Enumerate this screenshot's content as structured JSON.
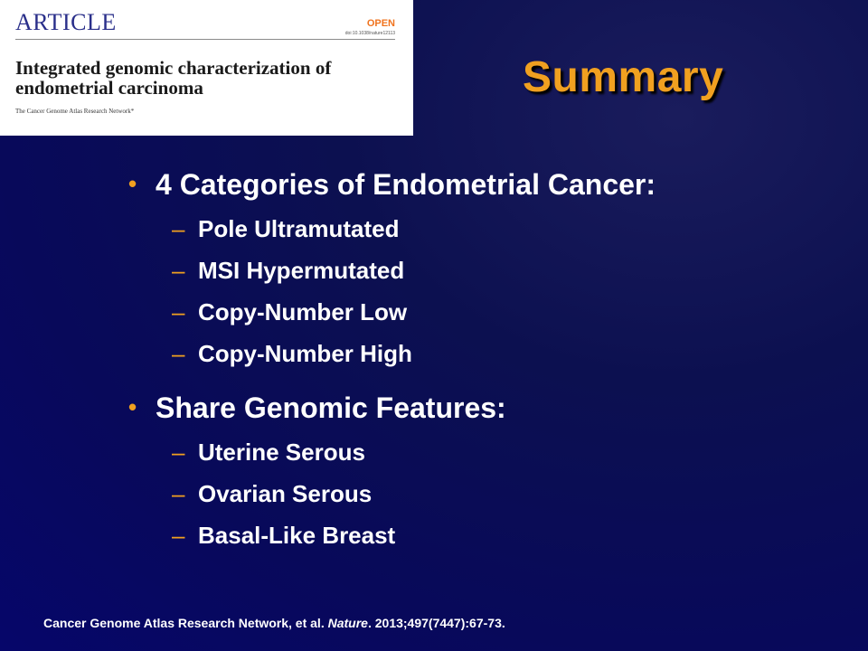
{
  "article": {
    "header": "ARTICLE",
    "open_label": "OPEN",
    "doi": "doi:10.1038/nature12113",
    "title": "Integrated genomic characterization of endometrial carcinoma",
    "authors": "The Cancer Genome Atlas Research Network*"
  },
  "slide": {
    "title": "Summary",
    "bullets": [
      {
        "label": "4 Categories of Endometrial Cancer:",
        "subitems": [
          "Pole Ultramutated",
          "MSI Hypermutated",
          "Copy-Number Low",
          "Copy-Number High"
        ]
      },
      {
        "label": "Share Genomic Features:",
        "subitems": [
          "Uterine Serous",
          "Ovarian Serous",
          "Basal-Like Breast"
        ]
      }
    ],
    "bullet_marker": "•",
    "sub_marker": "–"
  },
  "citation": {
    "prefix": "Cancer Genome Atlas Research Network, et al. ",
    "journal": "Nature",
    "suffix": ". 2013;497(7447):67-73."
  },
  "colors": {
    "accent": "#f0a020",
    "text": "#ffffff",
    "background": "#0c1050"
  }
}
